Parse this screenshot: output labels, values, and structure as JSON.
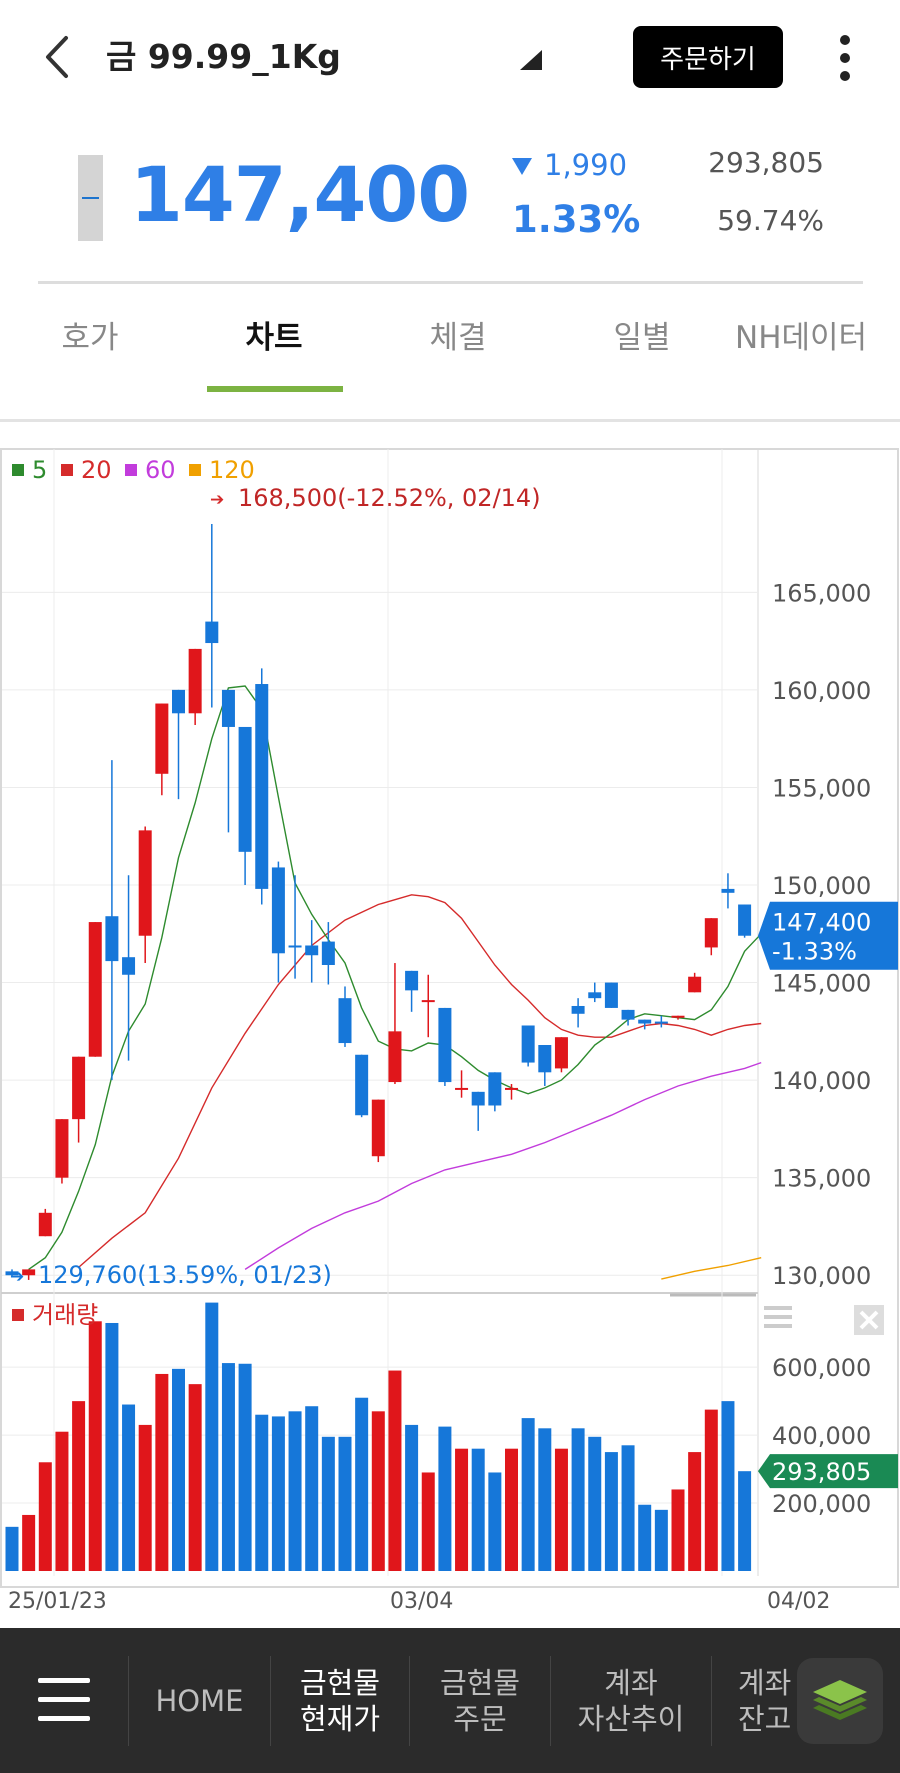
{
  "header": {
    "title": "금 99.99_1Kg",
    "order_button": "주문하기",
    "back_icon": "chevron-left-icon",
    "more_icon": "more-vertical-icon"
  },
  "quote": {
    "price": "147,400",
    "change": "1,990",
    "change_direction": "down",
    "change_rate": "1.33%",
    "volume": "293,805",
    "volume_ratio": "59.74%",
    "down_color": "#2f7fe6"
  },
  "tabs": [
    {
      "label": "호가",
      "active": false
    },
    {
      "label": "차트",
      "active": true
    },
    {
      "label": "체결",
      "active": false
    },
    {
      "label": "일별",
      "active": false
    },
    {
      "label": "NH데이터",
      "active": false
    }
  ],
  "chart_data": {
    "type": "candlestick",
    "legend": [
      {
        "name": "5",
        "color": "#2e8b2e"
      },
      {
        "name": "20",
        "color": "#d52b2b"
      },
      {
        "name": "60",
        "color": "#c23cdc"
      },
      {
        "name": "120",
        "color": "#f0a000"
      }
    ],
    "high_annotation": "168,500(-12.52%, 02/14)",
    "low_annotation": "129,760(13.59%, 01/23)",
    "y_ticks": [
      "165,000",
      "160,000",
      "155,000",
      "150,000",
      "145,000",
      "140,000",
      "135,000",
      "130,000"
    ],
    "ylim": [
      129500,
      170500
    ],
    "current_label": "147,400",
    "current_rate_label": "-1.33%",
    "x_ticks": [
      "25/01/23",
      "03/04",
      "04/02"
    ],
    "volume_label": "거래량",
    "volume_ticks": [
      "600,000",
      "400,000",
      "200,000"
    ],
    "volume_current": "293,805",
    "volume_ylim": [
      0,
      780000
    ],
    "up_color": "#e0161b",
    "down_color": "#1677d9",
    "candles": [
      {
        "o": 130200,
        "h": 130300,
        "c": 130000,
        "l": 129900,
        "v": 130000
      },
      {
        "o": 130000,
        "h": 130300,
        "c": 130300,
        "l": 129760,
        "v": 165000
      },
      {
        "o": 132000,
        "h": 133400,
        "c": 133200,
        "l": 132000,
        "v": 320000
      },
      {
        "o": 135000,
        "h": 138000,
        "c": 138000,
        "l": 134700,
        "v": 410000
      },
      {
        "o": 138000,
        "h": 141200,
        "c": 141200,
        "l": 136800,
        "v": 500000
      },
      {
        "o": 141200,
        "h": 148100,
        "c": 148100,
        "l": 141200,
        "v": 735000
      },
      {
        "o": 148400,
        "h": 156400,
        "c": 146100,
        "l": 140000,
        "v": 730000
      },
      {
        "o": 146300,
        "h": 150500,
        "c": 145400,
        "l": 141000,
        "v": 490000
      },
      {
        "o": 147400,
        "h": 153000,
        "c": 152800,
        "l": 146000,
        "v": 430000
      },
      {
        "o": 155700,
        "h": 159300,
        "c": 159300,
        "l": 154600,
        "v": 580000
      },
      {
        "o": 160000,
        "h": 160000,
        "c": 158800,
        "l": 154400,
        "v": 595000
      },
      {
        "o": 158800,
        "h": 162100,
        "c": 162100,
        "l": 158200,
        "v": 550000
      },
      {
        "o": 163500,
        "h": 168500,
        "c": 162400,
        "l": 159100,
        "v": 790000
      },
      {
        "o": 160000,
        "h": 160000,
        "c": 158100,
        "l": 152700,
        "v": 612000
      },
      {
        "o": 158100,
        "h": 158100,
        "c": 151700,
        "l": 150000,
        "v": 610000
      },
      {
        "o": 160300,
        "h": 161100,
        "c": 149800,
        "l": 149000,
        "v": 460000
      },
      {
        "o": 150900,
        "h": 151200,
        "c": 146500,
        "l": 145000,
        "v": 455000
      },
      {
        "o": 146900,
        "h": 150500,
        "c": 146800,
        "l": 145200,
        "v": 470000
      },
      {
        "o": 146900,
        "h": 148200,
        "c": 146400,
        "l": 145000,
        "v": 485000
      },
      {
        "o": 147100,
        "h": 148100,
        "c": 145900,
        "l": 144900,
        "v": 395000
      },
      {
        "o": 144200,
        "h": 144800,
        "c": 141900,
        "l": 141700,
        "v": 395000
      },
      {
        "o": 141300,
        "h": 141300,
        "c": 138200,
        "l": 138100,
        "v": 510000
      },
      {
        "o": 136100,
        "h": 139000,
        "c": 139000,
        "l": 135800,
        "v": 470000
      },
      {
        "o": 139900,
        "h": 146000,
        "c": 142500,
        "l": 139800,
        "v": 590000
      },
      {
        "o": 145600,
        "h": 145600,
        "c": 144600,
        "l": 143500,
        "v": 430000
      },
      {
        "o": 144000,
        "h": 145400,
        "c": 144100,
        "l": 142200,
        "v": 290000
      },
      {
        "o": 143700,
        "h": 143700,
        "c": 139900,
        "l": 139700,
        "v": 425000
      },
      {
        "o": 139600,
        "h": 140500,
        "c": 139600,
        "l": 139100,
        "v": 360000
      },
      {
        "o": 139400,
        "h": 139400,
        "c": 138700,
        "l": 137400,
        "v": 360000
      },
      {
        "o": 140400,
        "h": 140400,
        "c": 138700,
        "l": 138400,
        "v": 290000
      },
      {
        "o": 139500,
        "h": 139800,
        "c": 139600,
        "l": 139000,
        "v": 360000
      },
      {
        "o": 142800,
        "h": 142800,
        "c": 140900,
        "l": 140700,
        "v": 450000
      },
      {
        "o": 141800,
        "h": 141800,
        "c": 140400,
        "l": 139700,
        "v": 420000
      },
      {
        "o": 140600,
        "h": 142200,
        "c": 142200,
        "l": 140400,
        "v": 360000
      },
      {
        "o": 143800,
        "h": 144200,
        "c": 143400,
        "l": 142700,
        "v": 420000
      },
      {
        "o": 144500,
        "h": 145000,
        "c": 144200,
        "l": 144000,
        "v": 395000
      },
      {
        "o": 145000,
        "h": 145000,
        "c": 143700,
        "l": 143700,
        "v": 350000
      },
      {
        "o": 143600,
        "h": 143600,
        "c": 143100,
        "l": 142800,
        "v": 370000
      },
      {
        "o": 143100,
        "h": 143100,
        "c": 142900,
        "l": 142600,
        "v": 195000
      },
      {
        "o": 143000,
        "h": 143300,
        "c": 142900,
        "l": 142700,
        "v": 180000
      },
      {
        "o": 143200,
        "h": 143300,
        "c": 143300,
        "l": 143100,
        "v": 240000
      },
      {
        "o": 144500,
        "h": 145500,
        "c": 145300,
        "l": 144500,
        "v": 350000
      },
      {
        "o": 146800,
        "h": 148300,
        "c": 148300,
        "l": 146400,
        "v": 475000
      },
      {
        "o": 149800,
        "h": 150600,
        "c": 149600,
        "l": 148800,
        "v": 500000
      },
      {
        "o": 149000,
        "h": 149000,
        "c": 147400,
        "l": 147300,
        "v": 293805
      }
    ],
    "ma5": [
      [
        1,
        130300
      ],
      [
        2,
        130900
      ],
      [
        3,
        132200
      ],
      [
        4,
        134300
      ],
      [
        5,
        136700
      ],
      [
        6,
        140200
      ],
      [
        7,
        142500
      ],
      [
        8,
        143900
      ],
      [
        9,
        147300
      ],
      [
        10,
        151400
      ],
      [
        11,
        154200
      ],
      [
        12,
        157500
      ],
      [
        13,
        160100
      ],
      [
        14,
        160200
      ],
      [
        15,
        159000
      ],
      [
        16,
        154500
      ],
      [
        17,
        150100
      ],
      [
        18,
        148500
      ],
      [
        19,
        147200
      ],
      [
        20,
        146000
      ],
      [
        21,
        143700
      ],
      [
        22,
        142000
      ],
      [
        23,
        141600
      ],
      [
        24,
        141500
      ],
      [
        25,
        141900
      ],
      [
        26,
        141800
      ],
      [
        27,
        141200
      ],
      [
        28,
        140500
      ],
      [
        29,
        140000
      ],
      [
        30,
        139600
      ],
      [
        31,
        139300
      ],
      [
        32,
        139600
      ],
      [
        33,
        140000
      ],
      [
        34,
        140800
      ],
      [
        35,
        141800
      ],
      [
        36,
        142400
      ],
      [
        37,
        143100
      ],
      [
        38,
        143400
      ],
      [
        39,
        143300
      ],
      [
        40,
        143200
      ],
      [
        41,
        143100
      ],
      [
        42,
        143600
      ],
      [
        43,
        144800
      ],
      [
        44,
        146600
      ],
      [
        45,
        147500
      ]
    ],
    "ma20": [
      [
        4,
        130400
      ],
      [
        6,
        131900
      ],
      [
        8,
        133200
      ],
      [
        10,
        136000
      ],
      [
        12,
        139600
      ],
      [
        14,
        142400
      ],
      [
        16,
        144900
      ],
      [
        18,
        146900
      ],
      [
        20,
        148200
      ],
      [
        22,
        149000
      ],
      [
        24,
        149500
      ],
      [
        25,
        149400
      ],
      [
        26,
        149100
      ],
      [
        27,
        148300
      ],
      [
        28,
        147100
      ],
      [
        29,
        145900
      ],
      [
        30,
        144900
      ],
      [
        31,
        144100
      ],
      [
        32,
        143200
      ],
      [
        33,
        142600
      ],
      [
        34,
        142300
      ],
      [
        35,
        142200
      ],
      [
        36,
        142200
      ],
      [
        37,
        142500
      ],
      [
        38,
        142800
      ],
      [
        39,
        142900
      ],
      [
        40,
        142800
      ],
      [
        41,
        142600
      ],
      [
        42,
        142300
      ],
      [
        43,
        142600
      ],
      [
        44,
        142800
      ],
      [
        45,
        142900
      ]
    ],
    "ma60": [
      [
        14,
        130300
      ],
      [
        16,
        131400
      ],
      [
        18,
        132400
      ],
      [
        20,
        133200
      ],
      [
        22,
        133800
      ],
      [
        24,
        134700
      ],
      [
        26,
        135400
      ],
      [
        28,
        135800
      ],
      [
        30,
        136200
      ],
      [
        32,
        136800
      ],
      [
        34,
        137500
      ],
      [
        36,
        138200
      ],
      [
        38,
        139000
      ],
      [
        40,
        139700
      ],
      [
        42,
        140200
      ],
      [
        44,
        140600
      ],
      [
        45,
        140900
      ]
    ],
    "ma120": [
      [
        39,
        129800
      ],
      [
        41,
        130200
      ],
      [
        43,
        130500
      ],
      [
        45,
        130900
      ]
    ]
  },
  "bottom_nav": {
    "menu_icon": "menu-icon",
    "items": [
      {
        "line1": "HOME",
        "line2": "",
        "active": false
      },
      {
        "line1": "금현물",
        "line2": "현재가",
        "active": true
      },
      {
        "line1": "금현물",
        "line2": "주문",
        "active": false
      },
      {
        "line1": "계좌",
        "line2": "자산추이",
        "active": false
      },
      {
        "line1": "계좌",
        "line2": "잔고",
        "active": false
      }
    ],
    "layers_icon": "layers-icon"
  }
}
